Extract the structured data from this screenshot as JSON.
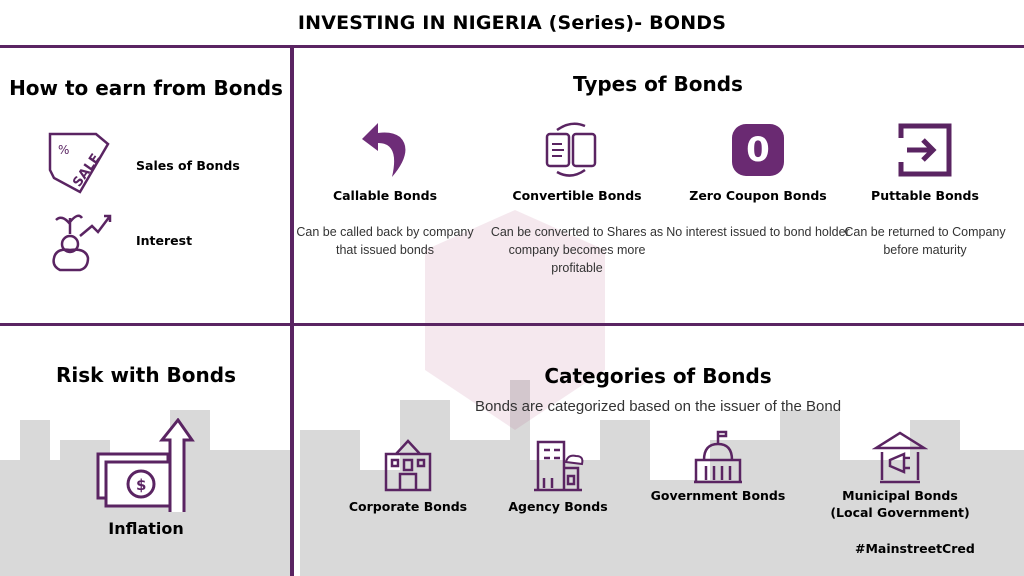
{
  "header": {
    "title": "INVESTING IN NIGERIA (Series)-  BONDS"
  },
  "colors": {
    "accent": "#5a2462",
    "skyline": "#d9d9d9"
  },
  "earn": {
    "title": "How to earn from Bonds",
    "items": [
      {
        "label": "Sales of Bonds",
        "icon": "sale-tag-icon"
      },
      {
        "label": "Interest",
        "icon": "piggy-bank-growth-icon"
      }
    ]
  },
  "types": {
    "title": "Types of Bonds",
    "items": [
      {
        "label": "Callable Bonds",
        "desc": "Can be called back by company that issued bonds",
        "icon": "return-arrow-icon"
      },
      {
        "label": "Convertible Bonds",
        "desc": "Can be converted to Shares as company becomes more profitable",
        "icon": "document-exchange-icon"
      },
      {
        "label": "Zero Coupon Bonds",
        "desc": "No interest issued to bond holder",
        "icon": "zero-icon",
        "glyph": "0"
      },
      {
        "label": "Puttable Bonds",
        "desc": "Can be returned to Company before maturity",
        "icon": "enter-icon"
      }
    ]
  },
  "risk": {
    "title": "Risk with Bonds",
    "item": "Inflation",
    "icon": "money-up-arrow-icon"
  },
  "categories": {
    "title": "Categories of Bonds",
    "subtitle": "Bonds are categorized based on the issuer of the Bond",
    "items": [
      {
        "label": "Corporate Bonds",
        "icon": "corporate-building-icon"
      },
      {
        "label": "Agency Bonds",
        "icon": "agency-building-icon"
      },
      {
        "label": "Government Bonds",
        "icon": "capitol-icon"
      },
      {
        "label": "Municipal Bonds",
        "sub": "(Local Government)",
        "icon": "municipal-building-icon"
      }
    ]
  },
  "hashtag": "#MainstreetCred"
}
